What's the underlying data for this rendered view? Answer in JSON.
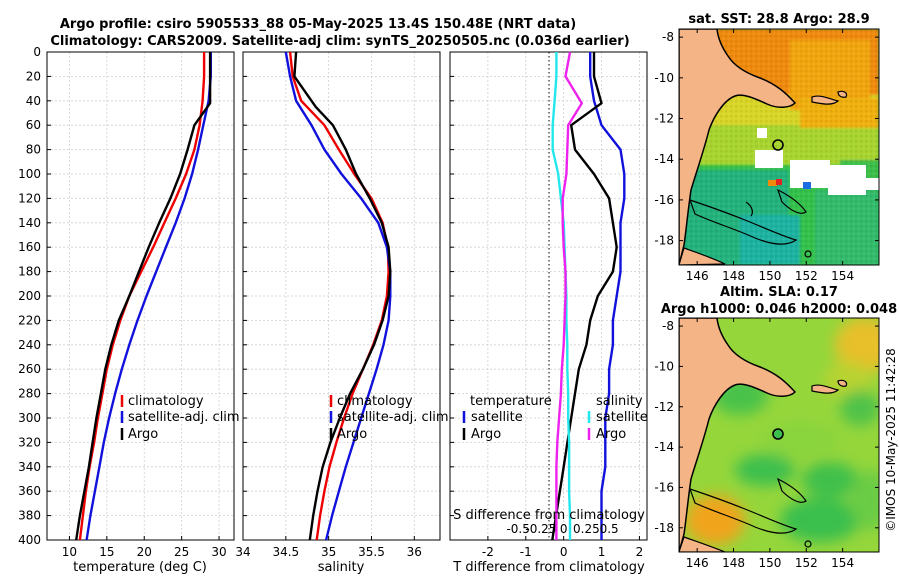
{
  "header": {
    "line1": "Argo profile: csiro 5905533_88 05-May-2025 13.4S 150.48E (NRT data)",
    "line2": "Climatology: CARS2009. Satellite-adj clim: synTS_20250505.nc (0.036d earlier)"
  },
  "watermark": "©IMOS 10-May-2025 11:42:28",
  "colors": {
    "climatology": "#ee0000",
    "satellite": "#1111dd",
    "argo": "#000000",
    "s_sat": "#22e8ee",
    "s_argo": "#ee22ee",
    "land": "#f4b486",
    "coast": "#000000"
  },
  "chart_data": [
    {
      "id": "temperature",
      "type": "line",
      "xlabel": "temperature (deg C)",
      "ylabel": "",
      "xlim": [
        7,
        32
      ],
      "ylim": [
        400,
        0
      ],
      "xticks": [
        10,
        15,
        20,
        25,
        30
      ],
      "yticks": [
        0,
        20,
        40,
        60,
        80,
        100,
        120,
        140,
        160,
        180,
        200,
        220,
        240,
        260,
        280,
        300,
        320,
        340,
        360,
        380,
        400
      ],
      "grid": true,
      "legend": [
        "climatology",
        "satellite-adj. clim",
        "Argo"
      ],
      "series": [
        {
          "name": "climatology",
          "color": "#ee0000",
          "x": [
            28.0,
            28.0,
            27.8,
            27.4,
            26.7,
            25.6,
            24.2,
            22.7,
            21.2,
            19.6,
            18.0,
            16.8,
            15.8,
            15.0,
            14.4,
            13.8,
            13.3,
            12.7,
            12.2,
            11.8,
            11.4
          ],
          "y": [
            0,
            20,
            40,
            60,
            80,
            100,
            120,
            140,
            160,
            180,
            200,
            220,
            240,
            260,
            280,
            300,
            320,
            340,
            360,
            380,
            400
          ]
        },
        {
          "name": "satellite-adj. clim",
          "color": "#1111dd",
          "x": [
            28.9,
            28.9,
            28.6,
            27.9,
            27.2,
            26.4,
            25.4,
            24.2,
            22.9,
            21.6,
            20.3,
            19.1,
            18.0,
            17.0,
            16.1,
            15.3,
            14.6,
            14.0,
            13.4,
            12.8,
            12.3
          ],
          "y": [
            0,
            20,
            40,
            60,
            80,
            100,
            120,
            140,
            160,
            180,
            200,
            220,
            240,
            260,
            280,
            300,
            320,
            340,
            360,
            380,
            400
          ]
        },
        {
          "name": "Argo",
          "color": "#000000",
          "x": [
            28.8,
            28.8,
            28.8,
            26.7,
            25.8,
            24.8,
            23.5,
            22.0,
            20.6,
            19.3,
            18.0,
            16.6,
            15.6,
            14.8,
            14.2,
            13.6,
            13.1,
            12.6,
            12.0,
            11.4,
            10.9
          ],
          "y": [
            0,
            20,
            42,
            60,
            80,
            100,
            120,
            140,
            160,
            180,
            200,
            220,
            240,
            260,
            280,
            300,
            320,
            340,
            360,
            380,
            400
          ]
        }
      ]
    },
    {
      "id": "salinity",
      "type": "line",
      "xlabel": "salinity",
      "xlim": [
        34,
        36.3
      ],
      "ylim": [
        400,
        0
      ],
      "xticks": [
        34,
        34.5,
        35,
        35.5,
        36
      ],
      "grid": true,
      "legend": [
        "climatology",
        "satellite-adj. clim",
        "Argo"
      ],
      "series": [
        {
          "name": "climatology",
          "color": "#ee0000",
          "x": [
            34.55,
            34.58,
            34.68,
            34.95,
            35.12,
            35.3,
            35.5,
            35.63,
            35.69,
            35.7,
            35.68,
            35.62,
            35.52,
            35.4,
            35.28,
            35.18,
            35.09,
            35.01,
            34.95,
            34.9,
            34.86
          ],
          "y": [
            0,
            20,
            40,
            60,
            80,
            100,
            120,
            140,
            160,
            180,
            200,
            220,
            240,
            260,
            280,
            300,
            320,
            340,
            360,
            380,
            400
          ]
        },
        {
          "name": "satellite-adj. clim",
          "color": "#1111dd",
          "x": [
            34.5,
            34.55,
            34.62,
            34.8,
            34.95,
            35.15,
            35.38,
            35.58,
            35.68,
            35.72,
            35.72,
            35.7,
            35.64,
            35.56,
            35.47,
            35.38,
            35.29,
            35.2,
            35.12,
            35.04,
            34.97
          ],
          "y": [
            0,
            20,
            40,
            60,
            80,
            100,
            120,
            140,
            160,
            180,
            200,
            220,
            240,
            260,
            280,
            300,
            320,
            340,
            360,
            380,
            400
          ]
        },
        {
          "name": "Argo",
          "color": "#000000",
          "x": [
            34.62,
            34.6,
            34.85,
            35.05,
            35.2,
            35.32,
            35.48,
            35.62,
            35.7,
            35.72,
            35.7,
            35.63,
            35.53,
            35.4,
            35.25,
            35.13,
            35.02,
            34.93,
            34.87,
            34.82,
            34.78
          ],
          "y": [
            0,
            20,
            45,
            60,
            80,
            100,
            120,
            140,
            160,
            180,
            200,
            220,
            240,
            260,
            280,
            300,
            320,
            340,
            360,
            380,
            400
          ]
        }
      ]
    },
    {
      "id": "differences",
      "type": "line",
      "xlabel": "T difference from climatology",
      "top_xlabel": "S difference from climatology",
      "xlim": [
        -3,
        2.2
      ],
      "ylim": [
        400,
        0
      ],
      "xticks": [
        -2,
        -1,
        0,
        1,
        2
      ],
      "xtick_labels": [
        "-2",
        "-1",
        "0",
        "1",
        "2"
      ],
      "sticks": [
        -0.5,
        -0.25,
        0,
        0.25,
        0.5
      ],
      "stick_labels": [
        "-0.5",
        "-0.25",
        "0",
        "0.25",
        "0.5"
      ],
      "grid": true,
      "legend_t_title": "temperature",
      "legend_s_title": "salinity",
      "legend_entries": [
        "satellite",
        "Argo"
      ],
      "series": [
        {
          "name": "T satellite",
          "color": "#1111dd",
          "x": [
            0.7,
            0.7,
            0.8,
            1.0,
            1.5,
            1.6,
            1.6,
            1.5,
            1.5,
            1.5,
            1.4,
            1.3,
            1.3,
            1.2,
            1.2,
            1.1,
            1.1,
            1.1,
            1.0,
            1.0,
            1.0
          ],
          "y": [
            0,
            20,
            40,
            60,
            80,
            100,
            120,
            140,
            160,
            180,
            200,
            220,
            240,
            260,
            280,
            300,
            320,
            340,
            360,
            380,
            400
          ]
        },
        {
          "name": "T Argo",
          "color": "#000000",
          "x": [
            0.8,
            0.8,
            1.0,
            0.2,
            0.3,
            0.8,
            1.2,
            1.3,
            1.4,
            1.3,
            0.9,
            0.7,
            0.6,
            0.4,
            0.3,
            0.2,
            0.1,
            0.0,
            -0.1,
            -0.2,
            -0.3
          ],
          "y": [
            0,
            20,
            42,
            60,
            80,
            100,
            120,
            140,
            160,
            180,
            200,
            220,
            240,
            260,
            280,
            300,
            320,
            340,
            360,
            380,
            400
          ]
        },
        {
          "name": "S satellite",
          "color": "#22e8ee",
          "x": [
            -0.08,
            -0.08,
            -0.1,
            -0.12,
            -0.12,
            -0.06,
            -0.03,
            0.0,
            0.01,
            0.02,
            0.03,
            0.03,
            0.04,
            0.04,
            0.05,
            0.05,
            0.06,
            0.06,
            0.06,
            0.07,
            0.07
          ],
          "y": [
            0,
            20,
            40,
            60,
            80,
            100,
            120,
            140,
            160,
            180,
            200,
            220,
            240,
            260,
            280,
            300,
            320,
            340,
            360,
            380,
            400
          ]
        },
        {
          "name": "S Argo",
          "color": "#ee22ee",
          "x": [
            0.07,
            0.02,
            0.2,
            0.05,
            0.04,
            0.03,
            -0.01,
            -0.01,
            0.0,
            0.02,
            0.02,
            0.01,
            0.0,
            -0.02,
            -0.03,
            -0.05,
            -0.07,
            -0.08,
            -0.08,
            -0.08,
            -0.08
          ],
          "y": [
            0,
            20,
            42,
            60,
            80,
            100,
            120,
            140,
            160,
            180,
            200,
            220,
            240,
            260,
            280,
            300,
            320,
            340,
            360,
            380,
            400
          ]
        }
      ]
    },
    {
      "id": "sst_map",
      "type": "heatmap",
      "title": "sat. SST: 28.8 Argo: 28.9",
      "xlim": [
        145,
        156
      ],
      "ylim": [
        -19.2,
        -7.6
      ],
      "xticks": [
        146,
        148,
        150,
        152,
        154
      ],
      "yticks": [
        -8,
        -10,
        -12,
        -14,
        -16,
        -18
      ],
      "profile_position": {
        "lon": 150.48,
        "lat": -13.4
      }
    },
    {
      "id": "sla_map",
      "type": "heatmap",
      "title": "Altim. SLA: 0.17",
      "subtitle": "Argo h1000: 0.046 h2000: 0.048",
      "xlim": [
        145,
        156
      ],
      "ylim": [
        -19.2,
        -7.6
      ],
      "xticks": [
        146,
        148,
        150,
        152,
        154
      ],
      "yticks": [
        -8,
        -10,
        -12,
        -14,
        -16,
        -18
      ],
      "profile_position": {
        "lon": 150.48,
        "lat": -13.4
      }
    }
  ]
}
